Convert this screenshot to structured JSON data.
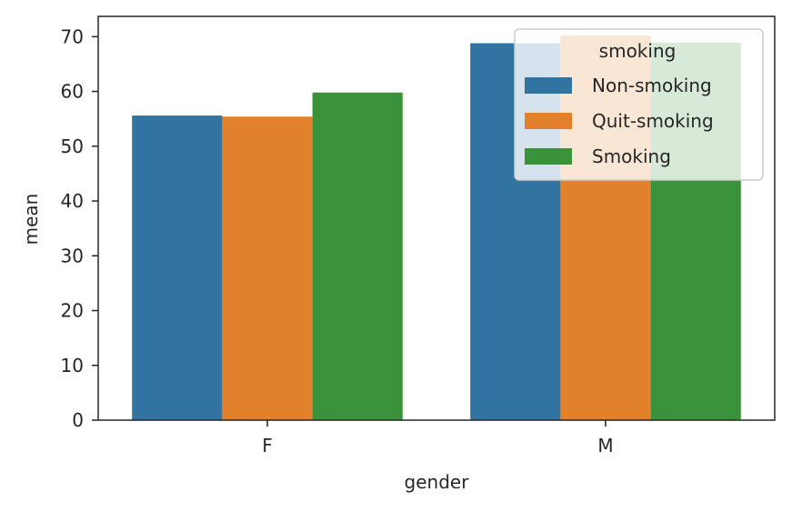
{
  "chart_data": {
    "type": "bar",
    "xlabel": "gender",
    "ylabel": "mean",
    "categories": [
      "F",
      "M"
    ],
    "series": [
      {
        "name": "Non-smoking",
        "color": "#3274a1",
        "values": [
          55.6,
          68.8
        ]
      },
      {
        "name": "Quit-smoking",
        "color": "#e1812c",
        "values": [
          55.4,
          70.2
        ]
      },
      {
        "name": "Smoking",
        "color": "#3a923a",
        "values": [
          59.8,
          68.9
        ]
      }
    ],
    "yticks": [
      0,
      10,
      20,
      30,
      40,
      50,
      60,
      70
    ],
    "ylim": [
      0,
      73.7
    ],
    "grid": false,
    "legend": {
      "title": "smoking",
      "placement": "top-right"
    }
  }
}
